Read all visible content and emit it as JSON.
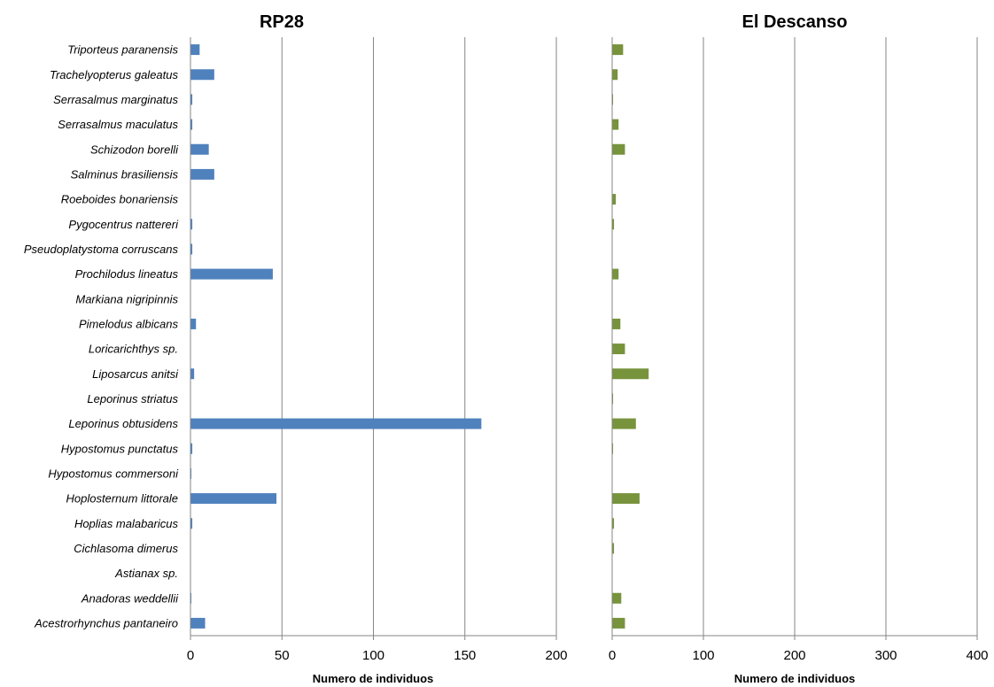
{
  "chart_data": [
    {
      "type": "bar",
      "orientation": "horizontal",
      "title": "RP28",
      "xlabel": "Numero de individuos",
      "ylabel": "",
      "xlim": [
        0,
        200
      ],
      "xticks": [
        0,
        50,
        100,
        150,
        200
      ],
      "grid": "vertical",
      "color": "#4F81BD",
      "categories": [
        "Triporteus paranensis",
        "Trachelyopterus galeatus",
        "Serrasalmus marginatus",
        "Serrasalmus maculatus",
        "Schizodon borelli",
        "Salminus brasiliensis",
        "Roeboides bonariensis",
        "Pygocentrus nattereri",
        "Pseudoplatystoma corruscans",
        "Prochilodus lineatus",
        "Markiana nigripinnis",
        "Pimelodus albicans",
        "Loricarichthys sp.",
        "Liposarcus anitsi",
        "Leporinus striatus",
        "Leporinus obtusidens",
        "Hypostomus punctatus",
        "Hypostomus commersoni",
        "Hoplosternum littorale",
        "Hoplias malabaricus",
        "Cichlasoma dimerus",
        "Astianax sp.",
        "Anadoras weddellii",
        "Acestrorhynchus pantaneiro"
      ],
      "values": [
        5,
        13,
        1,
        1,
        10,
        13,
        0,
        1,
        1,
        45,
        0,
        3,
        0,
        2,
        0,
        159,
        1,
        0.5,
        47,
        1,
        0,
        0,
        0.5,
        8
      ]
    },
    {
      "type": "bar",
      "orientation": "horizontal",
      "title": "El Descanso",
      "xlabel": "Numero de individuos",
      "ylabel": "",
      "xlim": [
        0,
        400
      ],
      "xticks": [
        0,
        100,
        200,
        300,
        400
      ],
      "grid": "vertical",
      "color": "#77933C",
      "categories": [
        "Triporteus paranensis",
        "Trachelyopterus galeatus",
        "Serrasalmus marginatus",
        "Serrasalmus maculatus",
        "Schizodon borelli",
        "Salminus brasiliensis",
        "Roeboides bonariensis",
        "Pygocentrus nattereri",
        "Pseudoplatystoma corruscans",
        "Prochilodus lineatus",
        "Markiana nigripinnis",
        "Pimelodus albicans",
        "Loricarichthys sp.",
        "Liposarcus anitsi",
        "Leporinus striatus",
        "Leporinus obtusidens",
        "Hypostomus punctatus",
        "Hypostomus commersoni",
        "Hoplosternum littorale",
        "Hoplias malabaricus",
        "Cichlasoma dimerus",
        "Astianax sp.",
        "Anadoras weddellii",
        "Acestrorhynchus pantaneiro"
      ],
      "values": [
        12,
        6,
        1,
        7,
        14,
        0,
        4,
        2,
        0,
        7,
        0,
        9,
        14,
        40,
        1,
        26,
        1,
        0,
        30,
        2,
        2,
        0,
        10,
        14
      ]
    }
  ]
}
